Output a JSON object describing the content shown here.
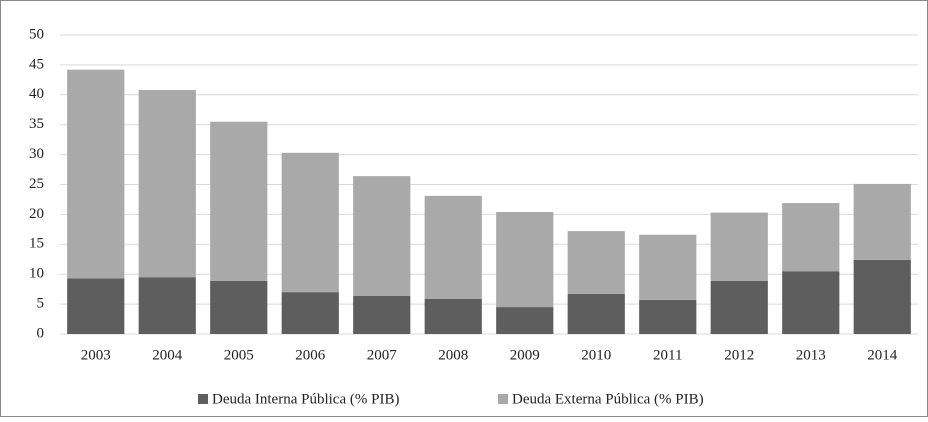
{
  "chart_data": {
    "type": "stacked_bar",
    "categories": [
      "2003",
      "2004",
      "2005",
      "2006",
      "2007",
      "2008",
      "2009",
      "2010",
      "2011",
      "2012",
      "2013",
      "2014"
    ],
    "series": [
      {
        "name": "Deuda Interna Pública (% PIB)",
        "color": "#5e5e5e",
        "values": [
          9.3,
          9.5,
          8.9,
          7.0,
          6.4,
          5.9,
          4.5,
          6.7,
          5.7,
          8.9,
          10.5,
          12.4
        ]
      },
      {
        "name": "Deuda Externa Pública (% PIB)",
        "color": "#a9a9a9",
        "values": [
          34.9,
          31.3,
          26.6,
          23.3,
          20.0,
          17.2,
          15.9,
          10.5,
          10.9,
          11.4,
          11.4,
          12.7
        ]
      }
    ],
    "ylim": [
      0,
      50
    ],
    "yticks": [
      0,
      5,
      10,
      15,
      20,
      25,
      30,
      35,
      40,
      45,
      50
    ],
    "grid": true,
    "legend": "bottom"
  }
}
